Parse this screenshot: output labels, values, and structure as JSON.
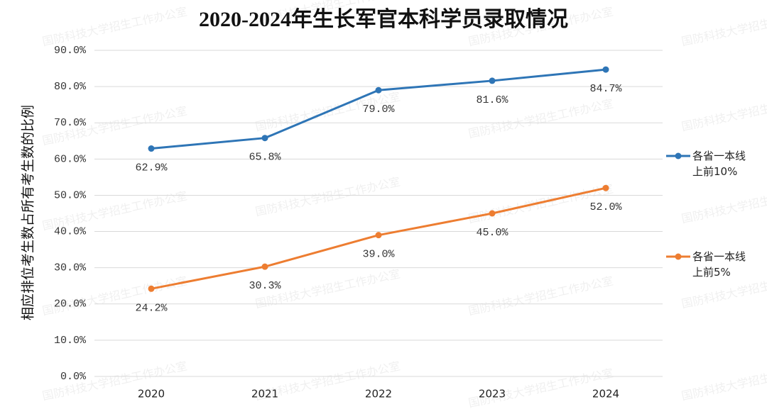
{
  "chart_data": {
    "type": "line",
    "title": "2020-2024年生长军官本科学员录取情况",
    "ylabel": "相应排位考生数占所有考生数的比例",
    "watermark": "国防科技大学招生工作办公室",
    "categories": [
      "2020",
      "2021",
      "2022",
      "2023",
      "2024"
    ],
    "series": [
      {
        "name": "各省一本线上前10%",
        "color": "#2e75b6",
        "values": [
          62.9,
          65.8,
          79.0,
          81.6,
          84.7
        ],
        "value_labels": [
          "62.9%",
          "65.8%",
          "79.0%",
          "81.6%",
          "84.7%"
        ]
      },
      {
        "name": "各省一本线上前5%",
        "color": "#ed7d31",
        "values": [
          24.2,
          30.3,
          39.0,
          45.0,
          52.0
        ],
        "value_labels": [
          "24.2%",
          "30.3%",
          "39.0%",
          "45.0%",
          "52.0%"
        ]
      }
    ],
    "ylim": [
      0,
      90
    ],
    "yticks": [
      {
        "value": 0,
        "label": "0.0%"
      },
      {
        "value": 10,
        "label": "10.0%"
      },
      {
        "value": 20,
        "label": "20.0%"
      },
      {
        "value": 30,
        "label": "30.0%"
      },
      {
        "value": 40,
        "label": "40.0%"
      },
      {
        "value": 50,
        "label": "50.0%"
      },
      {
        "value": 60,
        "label": "60.0%"
      },
      {
        "value": 70,
        "label": "70.0%"
      },
      {
        "value": 80,
        "label": "80.0%"
      },
      {
        "value": 90,
        "label": "90.0%"
      }
    ],
    "grid": true,
    "legend": "right"
  }
}
